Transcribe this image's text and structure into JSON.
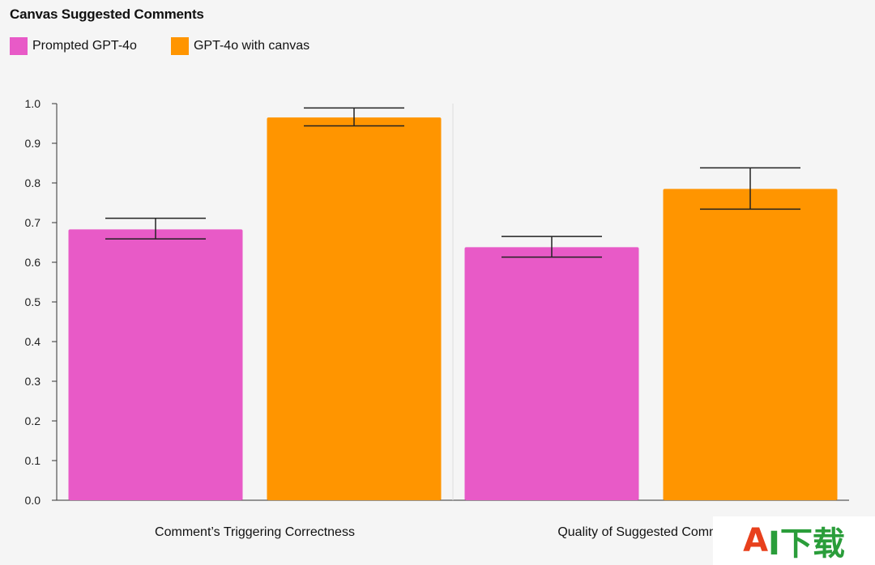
{
  "chart_data": {
    "type": "bar",
    "title": "Canvas Suggested Comments",
    "categories": [
      "Comment’s Triggering Correctness",
      "Quality of Suggested Comments"
    ],
    "series": [
      {
        "name": "Prompted GPT-4o",
        "color": "#e85ac7",
        "values": [
          0.683,
          0.638
        ],
        "error_low": [
          0.659,
          0.613
        ],
        "error_high": [
          0.711,
          0.665
        ]
      },
      {
        "name": "GPT-4o with canvas",
        "color": "#ff9500",
        "values": [
          0.965,
          0.785
        ],
        "error_low": [
          0.944,
          0.734
        ],
        "error_high": [
          0.989,
          0.838
        ]
      }
    ],
    "ylim": [
      0,
      1.0
    ],
    "yticks": [
      "0.0",
      "0.1",
      "0.2",
      "0.3",
      "0.4",
      "0.5",
      "0.6",
      "0.7",
      "0.8",
      "0.9",
      "1.0"
    ],
    "xlabel": "",
    "ylabel": "",
    "legend_position": "top-left",
    "grid": false
  },
  "watermark": {
    "logo_letter": "A",
    "logo_rest": "I下载"
  }
}
